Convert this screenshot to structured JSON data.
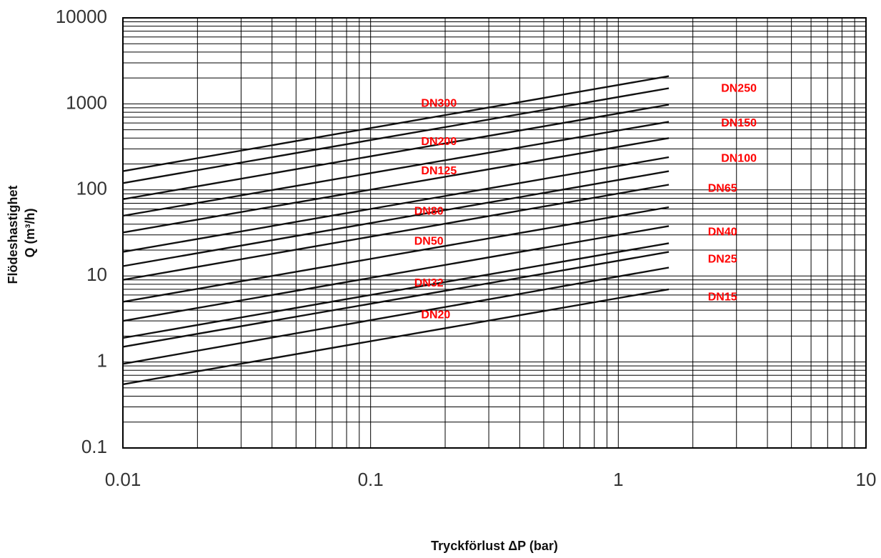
{
  "chart_data": {
    "type": "line",
    "scale": "log-log",
    "grid": true,
    "xlabel": "Tryckförlust ΔP (bar)",
    "ylabel_line1": "Flödeshastighet",
    "ylabel_line2": "Q (m³/h)",
    "xlim": [
      0.01,
      10
    ],
    "ylim": [
      0.1,
      10000
    ],
    "x_tick_labels": [
      {
        "value": 0.01,
        "label": "0.01"
      },
      {
        "value": 0.1,
        "label": "0.1"
      },
      {
        "value": 1,
        "label": "1"
      },
      {
        "value": 10,
        "label": "10"
      }
    ],
    "y_tick_labels": [
      {
        "value": 0.1,
        "label": "0.1"
      },
      {
        "value": 1,
        "label": "1"
      },
      {
        "value": 10,
        "label": "10"
      },
      {
        "value": 100,
        "label": "100"
      },
      {
        "value": 1000,
        "label": "1000"
      },
      {
        "value": 10000,
        "label": "10000"
      }
    ],
    "series": [
      {
        "name": "DN15",
        "x": [
          0.01,
          1.6
        ],
        "y": [
          0.55,
          7.0
        ]
      },
      {
        "name": "DN20",
        "x": [
          0.01,
          1.6
        ],
        "y": [
          0.95,
          12.5
        ]
      },
      {
        "name": "DN25",
        "x": [
          0.01,
          1.6
        ],
        "y": [
          1.5,
          19
        ]
      },
      {
        "name": "DN32",
        "x": [
          0.01,
          1.6
        ],
        "y": [
          1.9,
          24
        ]
      },
      {
        "name": "DN40",
        "x": [
          0.01,
          1.6
        ],
        "y": [
          3.0,
          38
        ]
      },
      {
        "name": "DN50",
        "x": [
          0.01,
          1.6
        ],
        "y": [
          5.0,
          63
        ]
      },
      {
        "name": "DN65",
        "x": [
          0.01,
          1.6
        ],
        "y": [
          9.0,
          115
        ]
      },
      {
        "name": "DN80",
        "x": [
          0.01,
          1.6
        ],
        "y": [
          13,
          165
        ]
      },
      {
        "name": "DN100",
        "x": [
          0.01,
          1.6
        ],
        "y": [
          19,
          240
        ]
      },
      {
        "name": "DN125",
        "x": [
          0.01,
          1.6
        ],
        "y": [
          32,
          400
        ]
      },
      {
        "name": "DN150",
        "x": [
          0.01,
          1.6
        ],
        "y": [
          50,
          620
        ]
      },
      {
        "name": "DN200",
        "x": [
          0.01,
          1.6
        ],
        "y": [
          78,
          980
        ]
      },
      {
        "name": "DN250",
        "x": [
          0.01,
          1.6
        ],
        "y": [
          120,
          1520
        ]
      },
      {
        "name": "DN300",
        "x": [
          0.01,
          1.6
        ],
        "y": [
          165,
          2100
        ]
      }
    ],
    "annotations": [
      {
        "text": "DN300",
        "x": 0.16,
        "y": 1000
      },
      {
        "text": "DN200",
        "x": 0.16,
        "y": 360
      },
      {
        "text": "DN125",
        "x": 0.16,
        "y": 165
      },
      {
        "text": "DN80",
        "x": 0.15,
        "y": 56
      },
      {
        "text": "DN50",
        "x": 0.15,
        "y": 25
      },
      {
        "text": "DN32",
        "x": 0.15,
        "y": 8.2
      },
      {
        "text": "DN20",
        "x": 0.16,
        "y": 3.5
      },
      {
        "text": "DN250",
        "x": 2.6,
        "y": 1500
      },
      {
        "text": "DN150",
        "x": 2.6,
        "y": 590
      },
      {
        "text": "DN100",
        "x": 2.6,
        "y": 230
      },
      {
        "text": "DN65",
        "x": 2.3,
        "y": 103
      },
      {
        "text": "DN40",
        "x": 2.3,
        "y": 32
      },
      {
        "text": "DN25",
        "x": 2.3,
        "y": 15.5
      },
      {
        "text": "DN15",
        "x": 2.3,
        "y": 5.6
      }
    ],
    "colors": {
      "series": "#111111",
      "annotations": "#ff0000",
      "grid": "#000000"
    }
  }
}
